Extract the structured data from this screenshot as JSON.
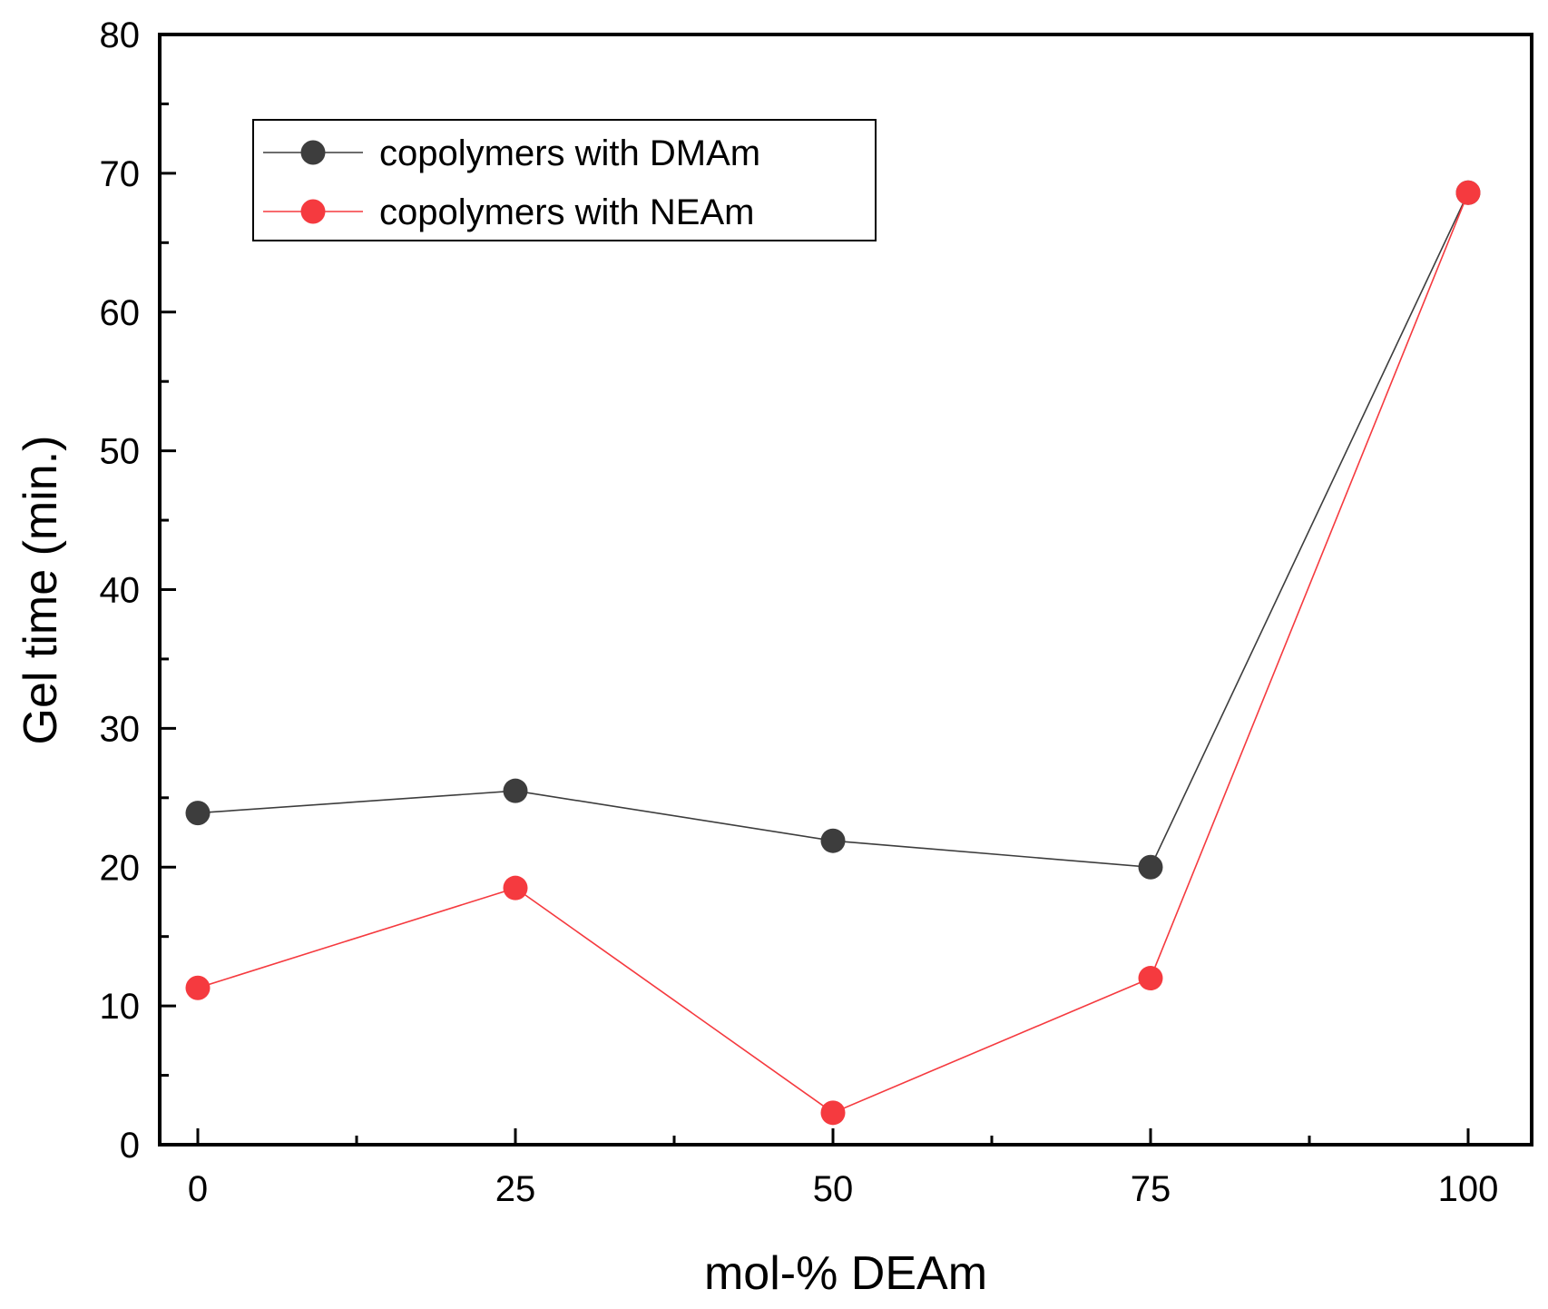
{
  "chart_data": {
    "type": "line",
    "title": "",
    "xlabel": "mol-% DEAm",
    "ylabel": "Gel time (min.)",
    "x": [
      0,
      25,
      50,
      75,
      100
    ],
    "xlim": [
      -3,
      105
    ],
    "ylim": [
      0,
      80
    ],
    "xticks": [
      "0",
      "25",
      "50",
      "75",
      "100"
    ],
    "yticks": [
      "0",
      "10",
      "20",
      "30",
      "40",
      "50",
      "60",
      "70",
      "80"
    ],
    "grid": false,
    "legend_position": "top-left",
    "series": [
      {
        "name": "copolymers with DMAm",
        "color": "#3d3d3d",
        "values": [
          23.9,
          25.5,
          21.9,
          20.0,
          68.6
        ]
      },
      {
        "name": "copolymers with NEAm",
        "color": "#f53a3f",
        "values": [
          11.3,
          18.5,
          2.3,
          12.0,
          68.6
        ]
      }
    ]
  }
}
